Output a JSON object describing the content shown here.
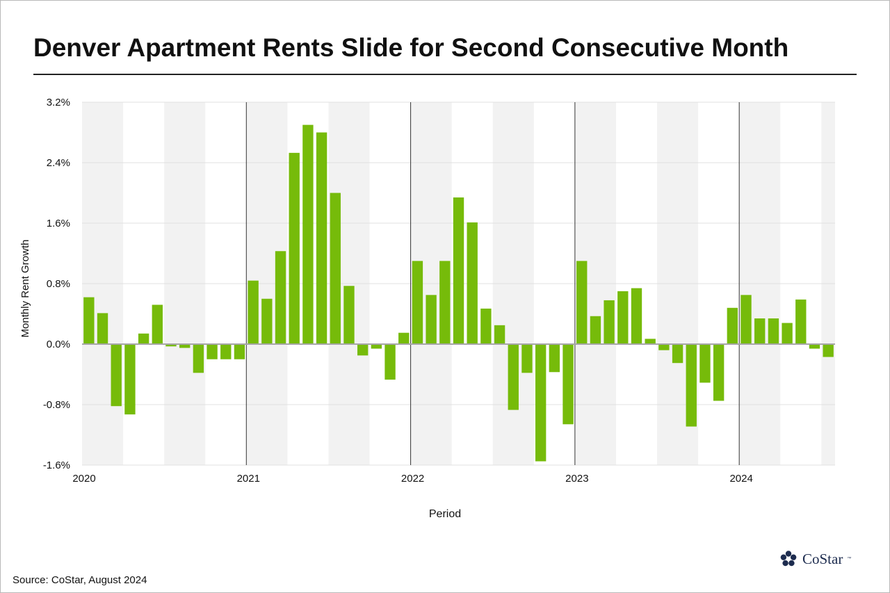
{
  "title": "Denver Apartment Rents Slide for Second Consecutive Month",
  "source": "Source: CoStar, August 2024",
  "logo": {
    "name": "CoStar",
    "trademark": "™",
    "icon": "costar-star-icon",
    "color": "#1d2c4f"
  },
  "colors": {
    "bar": "#76bb0a",
    "band": "#f2f2f2",
    "grid": "#e0e0e0",
    "zero_line": "#a6a6a6",
    "year_line": "#333333"
  },
  "chart_data": {
    "type": "bar",
    "title": "Denver Apartment Rents Slide for Second Consecutive Month",
    "xlabel": "Period",
    "ylabel": "Monthly  Rent Growth",
    "ylim": [
      -1.6,
      3.2
    ],
    "y_ticks": [
      "3.2%",
      "2.4%",
      "1.6%",
      "0.8%",
      "0.0%",
      "-0.8%",
      "-1.6%"
    ],
    "y_tick_values": [
      3.2,
      2.4,
      1.6,
      0.8,
      0.0,
      -0.8,
      -1.6
    ],
    "x_tick_labels": [
      "2020",
      "2021",
      "2022",
      "2023",
      "2024"
    ],
    "start": "2020-01",
    "months": [
      "2020-01",
      "2020-02",
      "2020-03",
      "2020-04",
      "2020-05",
      "2020-06",
      "2020-07",
      "2020-08",
      "2020-09",
      "2020-10",
      "2020-11",
      "2020-12",
      "2021-01",
      "2021-02",
      "2021-03",
      "2021-04",
      "2021-05",
      "2021-06",
      "2021-07",
      "2021-08",
      "2021-09",
      "2021-10",
      "2021-11",
      "2021-12",
      "2022-01",
      "2022-02",
      "2022-03",
      "2022-04",
      "2022-05",
      "2022-06",
      "2022-07",
      "2022-08",
      "2022-09",
      "2022-10",
      "2022-11",
      "2022-12",
      "2023-01",
      "2023-02",
      "2023-03",
      "2023-04",
      "2023-05",
      "2023-06",
      "2023-07",
      "2023-08",
      "2023-09",
      "2023-10",
      "2023-11",
      "2023-12",
      "2024-01",
      "2024-02",
      "2024-03",
      "2024-04",
      "2024-05",
      "2024-06",
      "2024-07"
    ],
    "values": [
      0.62,
      0.41,
      -0.82,
      -0.93,
      0.14,
      0.52,
      -0.03,
      -0.05,
      -0.38,
      -0.2,
      -0.2,
      -0.2,
      0.84,
      0.6,
      1.23,
      2.53,
      2.9,
      2.8,
      2.0,
      0.77,
      -0.15,
      -0.06,
      -0.47,
      0.15,
      1.1,
      0.65,
      1.1,
      1.94,
      1.61,
      0.47,
      0.25,
      -0.87,
      -0.38,
      -1.55,
      -0.37,
      -1.06,
      1.1,
      0.37,
      0.58,
      0.7,
      0.74,
      0.07,
      -0.08,
      -0.25,
      -1.09,
      -0.51,
      -0.75,
      0.48,
      0.65,
      0.34,
      0.34,
      0.28,
      0.59,
      -0.06,
      -0.17
    ],
    "grid": true,
    "legend": "none"
  }
}
